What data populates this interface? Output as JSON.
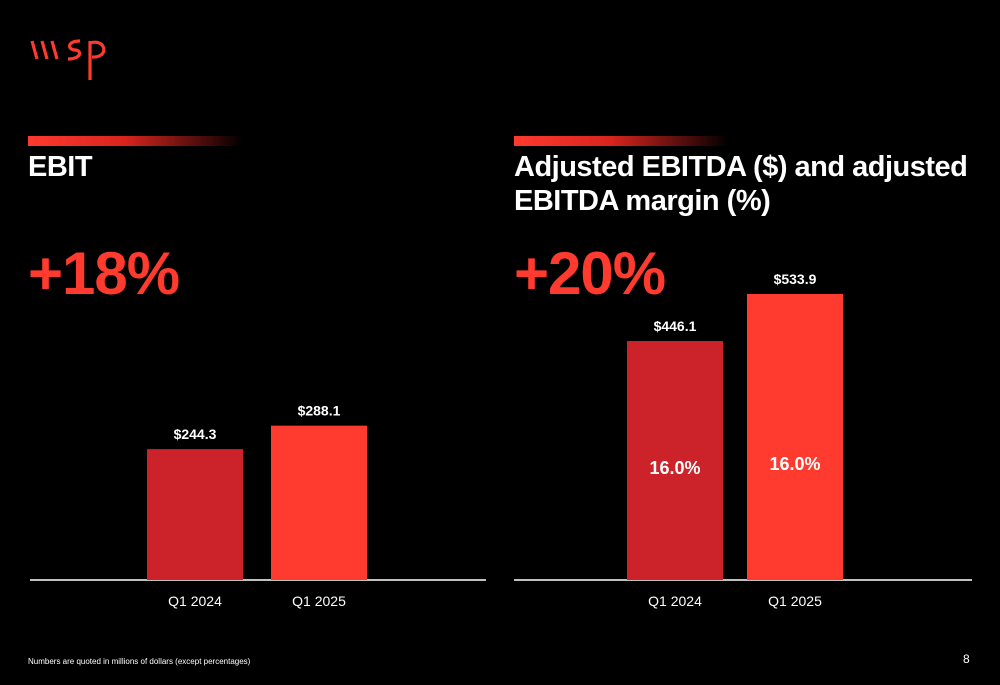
{
  "logo": {
    "text": "wsp",
    "icon": "wsp-logo"
  },
  "left": {
    "title": "EBIT",
    "growth": "+18%",
    "colors": [
      "#cc2229",
      "#ff3a2e"
    ]
  },
  "right": {
    "title_line1": "Adjusted EBITDA ($) and adjusted",
    "title_line2": "EBITDA margin (%)",
    "growth": "+20%",
    "colors": [
      "#cc2229",
      "#ff3a2e"
    ]
  },
  "chart_data": [
    {
      "type": "bar",
      "title": "EBIT",
      "categories": [
        "Q1 2024",
        "Q1 2025"
      ],
      "values": [
        244.3,
        288.1
      ],
      "value_labels": [
        "$244.3",
        "$288.1"
      ],
      "ylim": [
        0,
        560
      ]
    },
    {
      "type": "bar",
      "title": "Adjusted EBITDA ($) and adjusted EBITDA margin (%)",
      "categories": [
        "Q1 2024",
        "Q1 2025"
      ],
      "values": [
        446.1,
        533.9
      ],
      "value_labels": [
        "$446.1",
        "$533.9"
      ],
      "inner_labels": [
        "16.0%",
        "16.0%"
      ],
      "ylim": [
        0,
        560
      ]
    }
  ],
  "footer": {
    "note": "Numbers are quoted in millions of dollars (except percentages)",
    "page": "8"
  }
}
